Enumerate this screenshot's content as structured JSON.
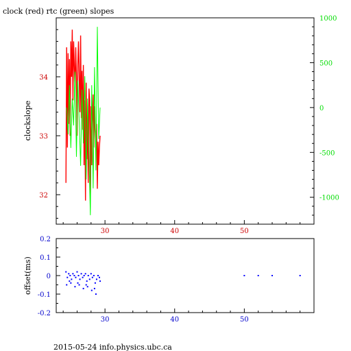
{
  "chart_data": [
    {
      "type": "line",
      "title": "clock (red) rtc (green) slopes",
      "ylabel": "clockslope",
      "x_range": [
        23,
        60
      ],
      "x_ticks": [
        30,
        40,
        50
      ],
      "y_left_range": [
        31.5,
        35
      ],
      "y_left_ticks": [
        32,
        33,
        34
      ],
      "y_right_range": [
        -1300,
        1000
      ],
      "y_right_ticks": [
        -1000,
        -500,
        0,
        500,
        1000
      ],
      "colors": {
        "clock": "#ff0000",
        "rtc": "#00ff00",
        "axis_left": "#cc0000",
        "axis_right": "#00dd00"
      },
      "series": [
        {
          "axis": "left",
          "x": [
            24.4,
            24.5,
            24.6,
            24.7,
            24.8,
            24.9,
            25.0,
            25.1,
            25.2,
            25.3,
            25.4,
            25.5,
            25.6,
            25.7,
            25.8,
            25.9,
            26.0,
            26.1,
            26.2,
            26.3,
            26.4,
            26.5,
            26.6,
            26.7,
            26.8,
            26.9,
            27.0,
            27.1,
            27.2,
            27.3,
            27.4,
            27.5,
            27.6,
            27.7,
            27.8,
            27.9,
            28.0,
            28.1,
            28.2,
            28.3,
            28.4,
            28.5,
            28.6,
            28.7,
            28.8,
            28.9,
            29.0,
            29.1,
            29.2,
            29.3
          ],
          "y": [
            32.2,
            34.5,
            32.8,
            34.4,
            33.2,
            34.3,
            33.0,
            34.6,
            34.0,
            34.8,
            33.6,
            34.6,
            34.2,
            33.8,
            34.5,
            34.0,
            33.0,
            34.2,
            34.6,
            34.0,
            33.4,
            34.7,
            33.3,
            34.1,
            33.1,
            34.2,
            32.5,
            33.6,
            31.9,
            33.9,
            32.6,
            33.4,
            32.2,
            33.8,
            33.6,
            32.0,
            33.5,
            32.5,
            33.2,
            33.7,
            32.8,
            33.5,
            33.1,
            32.9,
            33.2,
            32.1,
            32.9,
            32.5,
            32.8,
            33.0
          ]
        },
        {
          "axis": "right",
          "x": [
            24.5,
            24.7,
            24.9,
            25.1,
            25.3,
            25.5,
            25.7,
            25.9,
            26.1,
            26.3,
            26.5,
            26.7,
            26.9,
            27.1,
            27.3,
            27.5,
            27.7,
            27.9,
            28.1,
            28.3,
            28.5,
            28.7,
            28.9,
            29.1,
            29.3
          ],
          "y": [
            0,
            -300,
            250,
            -450,
            100,
            -200,
            400,
            -550,
            300,
            -150,
            -650,
            200,
            -400,
            350,
            -800,
            100,
            -550,
            -1200,
            250,
            -900,
            450,
            -700,
            900,
            -350,
            0
          ]
        }
      ]
    },
    {
      "type": "scatter",
      "ylabel": "offset(ms)",
      "x_range": [
        23,
        60
      ],
      "x_ticks": [
        30,
        40,
        50
      ],
      "y_range": [
        -0.2,
        0.2
      ],
      "y_ticks": [
        -0.2,
        -0.1,
        0,
        0.1,
        0.2
      ],
      "colors": {
        "points": "#0000ff",
        "axis": "#0000cc"
      },
      "x": [
        24.4,
        24.6,
        24.8,
        25.0,
        25.2,
        25.4,
        25.6,
        25.8,
        26.0,
        26.2,
        26.4,
        26.6,
        26.8,
        27.0,
        27.2,
        27.4,
        27.6,
        27.8,
        28.0,
        28.2,
        28.4,
        28.6,
        28.8,
        29.0,
        29.2,
        24.5,
        25.1,
        25.7,
        26.3,
        26.9,
        27.5,
        28.1,
        28.7,
        29.3,
        24.9,
        26.1,
        27.3,
        28.5,
        50.0,
        52.0,
        54.0,
        58.0
      ],
      "y": [
        0.02,
        -0.01,
        0.01,
        0.0,
        -0.02,
        0.01,
        0.0,
        -0.01,
        0.02,
        0.0,
        -0.02,
        0.01,
        -0.01,
        0.0,
        0.01,
        -0.03,
        0.0,
        -0.02,
        0.01,
        -0.01,
        0.0,
        -0.04,
        -0.02,
        0.0,
        -0.01,
        -0.05,
        -0.04,
        -0.06,
        -0.05,
        -0.07,
        -0.06,
        -0.08,
        -0.1,
        -0.03,
        -0.03,
        -0.04,
        -0.05,
        -0.07,
        0.0,
        0.0,
        0.0,
        0.0
      ]
    }
  ],
  "footer": "2015-05-24 info.physics.ubc.ca"
}
